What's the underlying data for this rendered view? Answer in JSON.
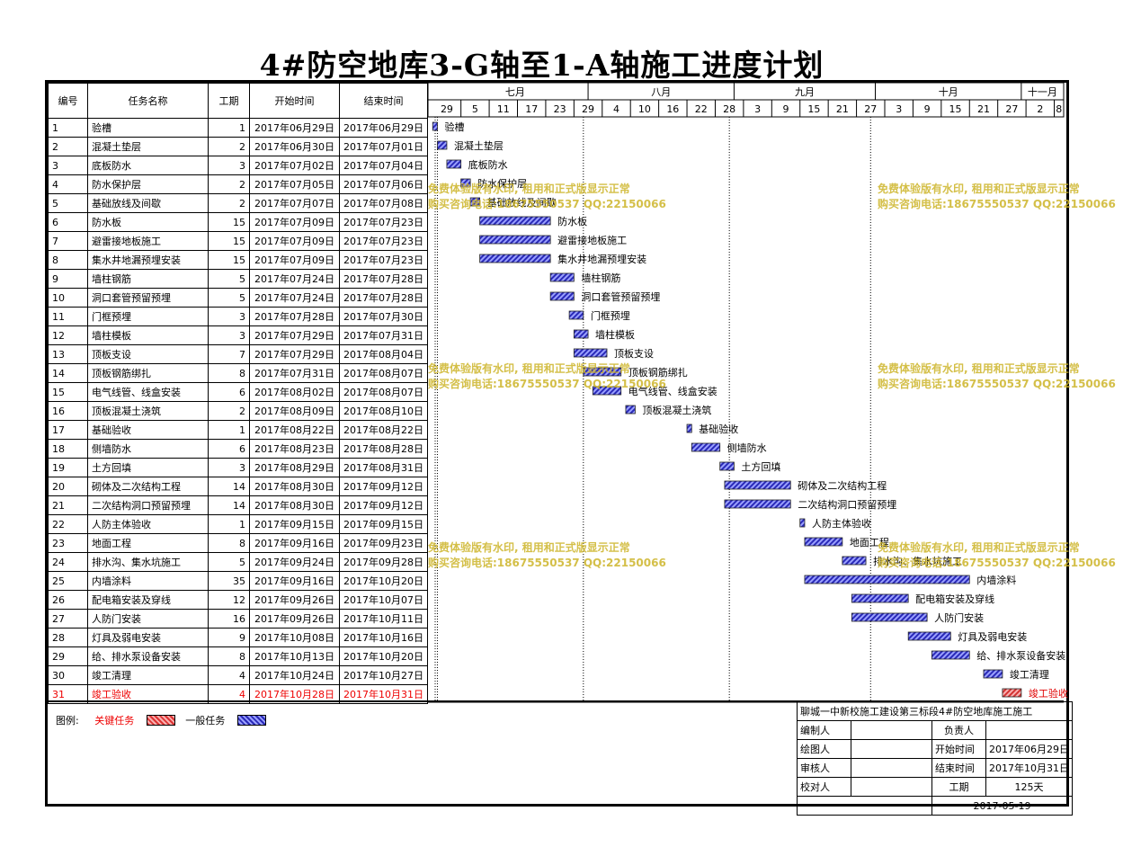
{
  "title": "4#防空地库3-G轴至1-A轴施工进度计划",
  "headers": {
    "no": "编号",
    "name": "任务名称",
    "days": "工期",
    "start": "开始时间",
    "end": "结束时间"
  },
  "months": [
    "七月",
    "八月",
    "九月",
    "十月",
    "十一月"
  ],
  "week_ticks": [
    "29",
    "5",
    "11",
    "17",
    "23",
    "29",
    "4",
    "10",
    "16",
    "22",
    "28",
    "3",
    "9",
    "15",
    "21",
    "27",
    "3",
    "9",
    "15",
    "21",
    "27",
    "2",
    "8"
  ],
  "colors": {
    "normal_bar": "#2a2ab8",
    "critical_bar": "#d33333",
    "critical_text": "#e00000"
  },
  "chart_data": {
    "type": "gantt",
    "date_range": [
      "2017-06-28",
      "2017-11-10"
    ],
    "tasks": [
      {
        "no": "1",
        "name": "验槽",
        "days": "1",
        "start": "2017年06月29日",
        "end": "2017年06月29日",
        "s": "2017-06-29",
        "e": "2017-06-29",
        "critical": false
      },
      {
        "no": "2",
        "name": "混凝土垫层",
        "days": "2",
        "start": "2017年06月30日",
        "end": "2017年07月01日",
        "s": "2017-06-30",
        "e": "2017-07-01",
        "critical": false
      },
      {
        "no": "3",
        "name": "底板防水",
        "days": "3",
        "start": "2017年07月02日",
        "end": "2017年07月04日",
        "s": "2017-07-02",
        "e": "2017-07-04",
        "critical": false
      },
      {
        "no": "4",
        "name": "防水保护层",
        "days": "2",
        "start": "2017年07月05日",
        "end": "2017年07月06日",
        "s": "2017-07-05",
        "e": "2017-07-06",
        "critical": false
      },
      {
        "no": "5",
        "name": "基础放线及间歇",
        "days": "2",
        "start": "2017年07月07日",
        "end": "2017年07月08日",
        "s": "2017-07-07",
        "e": "2017-07-08",
        "critical": false
      },
      {
        "no": "6",
        "name": "防水板",
        "days": "15",
        "start": "2017年07月09日",
        "end": "2017年07月23日",
        "s": "2017-07-09",
        "e": "2017-07-23",
        "critical": false
      },
      {
        "no": "7",
        "name": "避雷接地板施工",
        "days": "15",
        "start": "2017年07月09日",
        "end": "2017年07月23日",
        "s": "2017-07-09",
        "e": "2017-07-23",
        "critical": false
      },
      {
        "no": "8",
        "name": "集水井地漏预埋安装",
        "days": "15",
        "start": "2017年07月09日",
        "end": "2017年07月23日",
        "s": "2017-07-09",
        "e": "2017-07-23",
        "critical": false
      },
      {
        "no": "9",
        "name": "墙柱钢筋",
        "days": "5",
        "start": "2017年07月24日",
        "end": "2017年07月28日",
        "s": "2017-07-24",
        "e": "2017-07-28",
        "critical": false
      },
      {
        "no": "10",
        "name": "洞口套管预留预埋",
        "days": "5",
        "start": "2017年07月24日",
        "end": "2017年07月28日",
        "s": "2017-07-24",
        "e": "2017-07-28",
        "critical": false
      },
      {
        "no": "11",
        "name": "门框预埋",
        "days": "3",
        "start": "2017年07月28日",
        "end": "2017年07月30日",
        "s": "2017-07-28",
        "e": "2017-07-30",
        "critical": false
      },
      {
        "no": "12",
        "name": "墙柱模板",
        "days": "3",
        "start": "2017年07月29日",
        "end": "2017年07月31日",
        "s": "2017-07-29",
        "e": "2017-07-31",
        "critical": false
      },
      {
        "no": "13",
        "name": "顶板支设",
        "days": "7",
        "start": "2017年07月29日",
        "end": "2017年08月04日",
        "s": "2017-07-29",
        "e": "2017-08-04",
        "critical": false
      },
      {
        "no": "14",
        "name": "顶板钢筋绑扎",
        "days": "8",
        "start": "2017年07月31日",
        "end": "2017年08月07日",
        "s": "2017-07-31",
        "e": "2017-08-07",
        "critical": false
      },
      {
        "no": "15",
        "name": "电气线管、线盒安装",
        "days": "6",
        "start": "2017年08月02日",
        "end": "2017年08月07日",
        "s": "2017-08-02",
        "e": "2017-08-07",
        "critical": false
      },
      {
        "no": "16",
        "name": "顶板混凝土浇筑",
        "days": "2",
        "start": "2017年08月09日",
        "end": "2017年08月10日",
        "s": "2017-08-09",
        "e": "2017-08-10",
        "critical": false
      },
      {
        "no": "17",
        "name": "基础验收",
        "days": "1",
        "start": "2017年08月22日",
        "end": "2017年08月22日",
        "s": "2017-08-22",
        "e": "2017-08-22",
        "critical": false
      },
      {
        "no": "18",
        "name": "侧墙防水",
        "days": "6",
        "start": "2017年08月23日",
        "end": "2017年08月28日",
        "s": "2017-08-23",
        "e": "2017-08-28",
        "critical": false
      },
      {
        "no": "19",
        "name": "土方回填",
        "days": "3",
        "start": "2017年08月29日",
        "end": "2017年08月31日",
        "s": "2017-08-29",
        "e": "2017-08-31",
        "critical": false
      },
      {
        "no": "20",
        "name": "砌体及二次结构工程",
        "days": "14",
        "start": "2017年08月30日",
        "end": "2017年09月12日",
        "s": "2017-08-30",
        "e": "2017-09-12",
        "critical": false
      },
      {
        "no": "21",
        "name": "二次结构洞口预留预埋",
        "days": "14",
        "start": "2017年08月30日",
        "end": "2017年09月12日",
        "s": "2017-08-30",
        "e": "2017-09-12",
        "critical": false
      },
      {
        "no": "22",
        "name": "人防主体验收",
        "days": "1",
        "start": "2017年09月15日",
        "end": "2017年09月15日",
        "s": "2017-09-15",
        "e": "2017-09-15",
        "critical": false
      },
      {
        "no": "23",
        "name": "地面工程",
        "days": "8",
        "start": "2017年09月16日",
        "end": "2017年09月23日",
        "s": "2017-09-16",
        "e": "2017-09-23",
        "critical": false
      },
      {
        "no": "24",
        "name": "排水沟、集水坑施工",
        "days": "5",
        "start": "2017年09月24日",
        "end": "2017年09月28日",
        "s": "2017-09-24",
        "e": "2017-09-28",
        "critical": false
      },
      {
        "no": "25",
        "name": "内墙涂料",
        "days": "35",
        "start": "2017年09月16日",
        "end": "2017年10月20日",
        "s": "2017-09-16",
        "e": "2017-10-20",
        "critical": false
      },
      {
        "no": "26",
        "name": "配电箱安装及穿线",
        "days": "12",
        "start": "2017年09月26日",
        "end": "2017年10月07日",
        "s": "2017-09-26",
        "e": "2017-10-07",
        "critical": false
      },
      {
        "no": "27",
        "name": "人防门安装",
        "days": "16",
        "start": "2017年09月26日",
        "end": "2017年10月11日",
        "s": "2017-09-26",
        "e": "2017-10-11",
        "critical": false
      },
      {
        "no": "28",
        "name": "灯具及弱电安装",
        "days": "9",
        "start": "2017年10月08日",
        "end": "2017年10月16日",
        "s": "2017-10-08",
        "e": "2017-10-16",
        "critical": false
      },
      {
        "no": "29",
        "name": "给、排水泵设备安装",
        "days": "8",
        "start": "2017年10月13日",
        "end": "2017年10月20日",
        "s": "2017-10-13",
        "e": "2017-10-20",
        "critical": false
      },
      {
        "no": "30",
        "name": "竣工清理",
        "days": "4",
        "start": "2017年10月24日",
        "end": "2017年10月27日",
        "s": "2017-10-24",
        "e": "2017-10-27",
        "critical": false
      },
      {
        "no": "31",
        "name": "竣工验收",
        "days": "4",
        "start": "2017年10月28日",
        "end": "2017年10月31日",
        "s": "2017-10-28",
        "e": "2017-10-31",
        "critical": true
      }
    ]
  },
  "legend": {
    "label": "图例:",
    "critical": "关键任务",
    "normal": "一般任务"
  },
  "info": {
    "project": "聊城一中新校施工建设第三标段4#防空地库施工施工",
    "editor": "编制人",
    "leader": "负责人",
    "drawer": "绘图人",
    "start_label": "开始时间",
    "start": "2017年06月29日",
    "reviewer": "审核人",
    "end_label": "结束时间",
    "end": "2017年10月31日",
    "checker": "校对人",
    "period_label": "工期",
    "period": "125天",
    "date": "2017-05-19"
  },
  "watermark": {
    "line1": "免费体验版有水印, 租用和正式版显示正常",
    "line2": "购买咨询电话:18675550537 QQ:22150066"
  }
}
